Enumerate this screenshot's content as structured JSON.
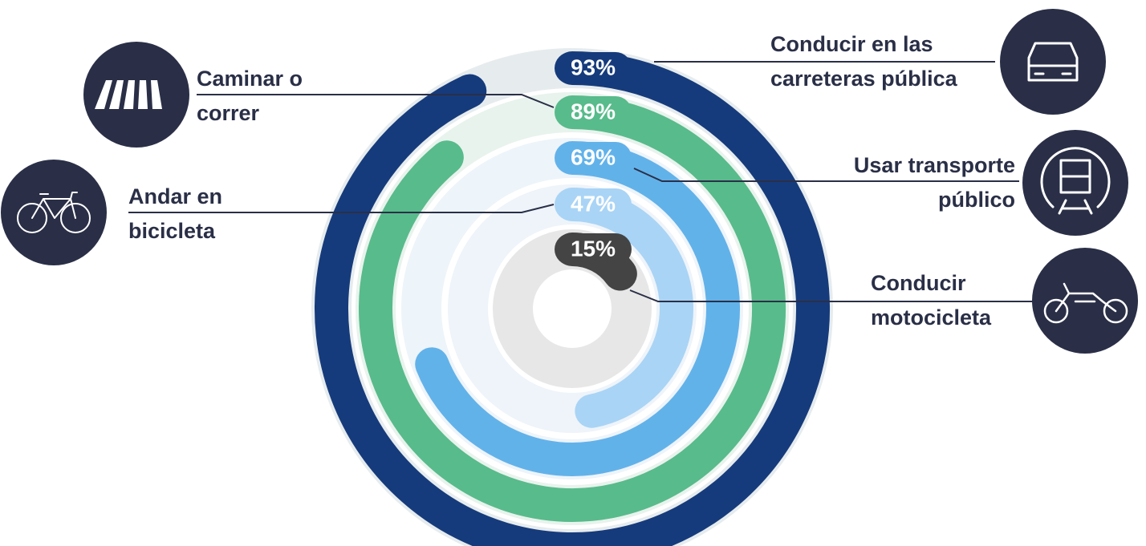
{
  "chart_data": {
    "type": "radial_bar",
    "categories": [
      [
        "Conducir en las",
        "carreteras pública"
      ],
      [
        "Caminar o",
        "correr"
      ],
      [
        "Usar transporte",
        "público"
      ],
      [
        "Andar en",
        "bicicleta"
      ],
      [
        "Conducir",
        "motocicleta"
      ]
    ],
    "values": [
      93,
      89,
      69,
      47,
      15
    ],
    "value_labels": [
      "93%",
      "89%",
      "69%",
      "47%",
      "15%"
    ],
    "colors": [
      "#163b7c",
      "#58bb8b",
      "#62b2ea",
      "#a9d4f5",
      "#444444"
    ],
    "track_colors": [
      "#e6ecee",
      "#e8f3ed",
      "#edf4fa",
      "#eef4fa",
      "#e7e7e7"
    ]
  }
}
